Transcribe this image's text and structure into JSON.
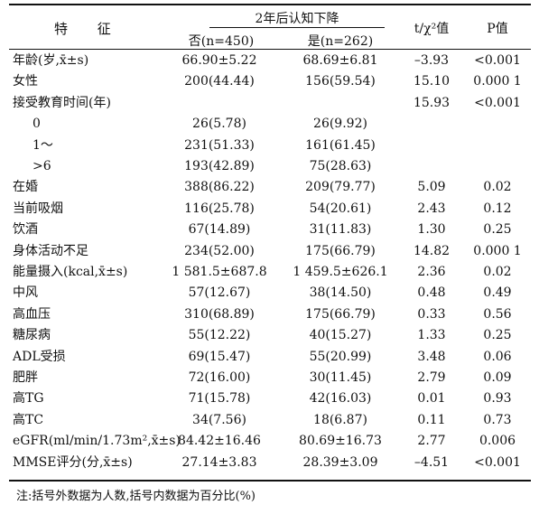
{
  "header": {
    "feature": "特 征",
    "group": "2年后认知下降",
    "no": "否(n=450)",
    "yes": "是(n=262)",
    "stat": "t/χ²值",
    "p": "P值"
  },
  "rows": [
    {
      "label": "年龄(岁,x̄±s)",
      "no": "66.90±5.22",
      "yes": "68.69±6.81",
      "stat": "–3.93",
      "p": "<0.001"
    },
    {
      "label": "女性",
      "no": "200(44.44)",
      "yes": "156(59.54)",
      "stat": "15.10",
      "p": "0.000 1"
    },
    {
      "label": "接受教育时间(年)",
      "no": "",
      "yes": "",
      "stat": "15.93",
      "p": "<0.001"
    },
    {
      "label": "0",
      "no": "26(5.78)",
      "yes": "26(9.92)",
      "stat": "",
      "p": ""
    },
    {
      "label": "1～",
      "no": "231(51.33)",
      "yes": "161(61.45)",
      "stat": "",
      "p": ""
    },
    {
      "label": ">6",
      "no": "193(42.89)",
      "yes": "75(28.63)",
      "stat": "",
      "p": ""
    },
    {
      "label": "在婚",
      "no": "388(86.22)",
      "yes": "209(79.77)",
      "stat": "5.09",
      "p": "0.02"
    },
    {
      "label": "当前吸烟",
      "no": "116(25.78)",
      "yes": "54(20.61)",
      "stat": "2.43",
      "p": "0.12"
    },
    {
      "label": "饮酒",
      "no": "67(14.89)",
      "yes": "31(11.83)",
      "stat": "1.30",
      "p": "0.25"
    },
    {
      "label": "身体活动不足",
      "no": "234(52.00)",
      "yes": "175(66.79)",
      "stat": "14.82",
      "p": "0.000 1"
    },
    {
      "label": "能量摄入(kcal,x̄±s)",
      "no": "1 581.5±687.8",
      "yes": "1 459.5±626.1",
      "stat": "2.36",
      "p": "0.02"
    },
    {
      "label": "中风",
      "no": "57(12.67)",
      "yes": "38(14.50)",
      "stat": "0.48",
      "p": "0.49"
    },
    {
      "label": "高血压",
      "no": "310(68.89)",
      "yes": "175(66.79)",
      "stat": "0.33",
      "p": "0.56"
    },
    {
      "label": "糖尿病",
      "no": "55(12.22)",
      "yes": "40(15.27)",
      "stat": "1.33",
      "p": "0.25"
    },
    {
      "label": "ADL受损",
      "no": "69(15.47)",
      "yes": "55(20.99)",
      "stat": "3.48",
      "p": "0.06"
    },
    {
      "label": "肥胖",
      "no": "72(16.00)",
      "yes": "30(11.45)",
      "stat": "2.79",
      "p": "0.09"
    },
    {
      "label": "高TG",
      "no": "71(15.78)",
      "yes": "42(16.03)",
      "stat": "0.01",
      "p": "0.93"
    },
    {
      "label": "高TC",
      "no": "34(7.56)",
      "yes": "18(6.87)",
      "stat": "0.11",
      "p": "0.73"
    },
    {
      "label": "eGFR(ml/min/1.73m²,x̄±s)",
      "no": "84.42±16.46",
      "yes": "80.69±16.73",
      "stat": "2.77",
      "p": "0.006"
    },
    {
      "label": "MMSE评分(分,x̄±s)",
      "no": "27.14±3.83",
      "yes": "28.39±3.09",
      "stat": "–4.51",
      "p": "<0.001"
    }
  ],
  "note": "注:括号外数据为人数,括号内数据为百分比(%)"
}
